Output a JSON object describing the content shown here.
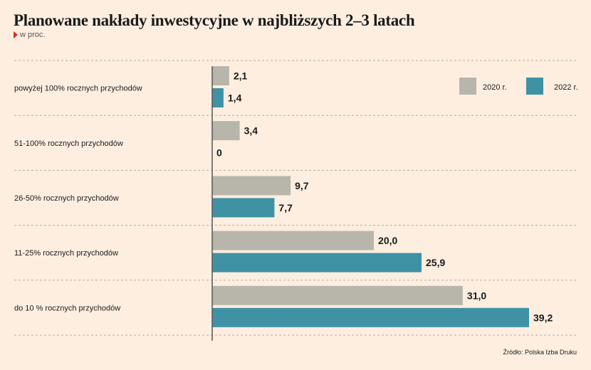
{
  "chart_data": {
    "type": "bar",
    "orientation": "horizontal",
    "title": "Planowane nakłady inwestycyjne w najbliższych 2–3 latach",
    "subtitle": "w proc.",
    "categories": [
      "powyżej 100% rocznych przychodów",
      "51-100% rocznych przychodów",
      "26-50% rocznych przychodów",
      "11-25% rocznych przychodów",
      "do 10 % rocznych przychodów"
    ],
    "series": [
      {
        "name": "2020 r.",
        "color": "#b8b6ab",
        "values": [
          2.1,
          3.4,
          9.7,
          20.0,
          31.0
        ],
        "labels": [
          "2,1",
          "3,4",
          "9,7",
          "20,0",
          "31,0"
        ]
      },
      {
        "name": "2022 r.",
        "color": "#3f92a3",
        "values": [
          1.4,
          0,
          7.7,
          25.9,
          39.2
        ],
        "labels": [
          "1,4",
          "0",
          "7,7",
          "25,9",
          "39,2"
        ]
      }
    ],
    "xlim": [
      0,
      40
    ],
    "grid": false,
    "legend_position": "top-right"
  },
  "source": "Źródło: Polska Izba Druku"
}
